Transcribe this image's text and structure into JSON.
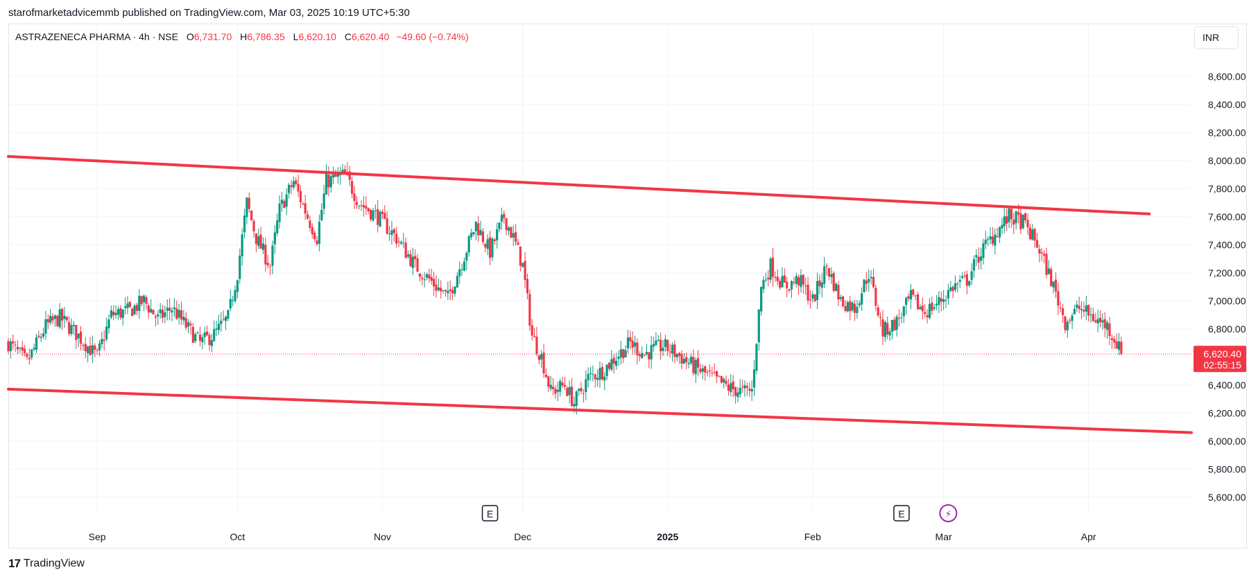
{
  "header": {
    "publisher_line": "starofmarketadvicemmb published on TradingView.com, Mar 03, 2025 10:19 UTC+5:30"
  },
  "legend": {
    "symbol": "ASTRAZENECA PHARMA · 4h · NSE",
    "open_label": "O",
    "open": "6,731.70",
    "high_label": "H",
    "high": "6,786.35",
    "low_label": "L",
    "low": "6,620.10",
    "close_label": "C",
    "close": "6,620.40",
    "change": "−49.60 (−0.74%)"
  },
  "currency_button": {
    "label": "INR"
  },
  "price_badge": {
    "price": "6,620.40",
    "countdown": "02:55:15"
  },
  "footer": {
    "brand": "TradingView",
    "logo_glyph": "17"
  },
  "colors": {
    "up": "#089981",
    "down": "#f23645",
    "channel": "#f23645",
    "grid": "#f0f3fa"
  },
  "chart_data": {
    "type": "candlestick",
    "ylim": [
      5500,
      8800
    ],
    "y_ticks": [
      5600,
      5800,
      6000,
      6200,
      6400,
      6600,
      6800,
      7000,
      7200,
      7400,
      7600,
      7800,
      8000,
      8200,
      8400,
      8600
    ],
    "y_tick_labels": [
      "5,600.00",
      "5,800.00",
      "6,000.00",
      "6,200.00",
      "6,400.00",
      "6,600.00",
      "6,800.00",
      "7,000.00",
      "7,200.00",
      "7,400.00",
      "7,600.00",
      "7,800.00",
      "8,000.00",
      "8,200.00",
      "8,400.00",
      "8,600.00"
    ],
    "x_range": [
      "2024-08-13",
      "2025-04-23"
    ],
    "x_ticks": [
      {
        "date": "2024-09-01",
        "label": "Sep",
        "bold": false
      },
      {
        "date": "2024-10-01",
        "label": "Oct",
        "bold": false
      },
      {
        "date": "2024-11-01",
        "label": "Nov",
        "bold": false
      },
      {
        "date": "2024-12-01",
        "label": "Dec",
        "bold": false
      },
      {
        "date": "2025-01-01",
        "label": "2025",
        "bold": true
      },
      {
        "date": "2025-02-01",
        "label": "Feb",
        "bold": false
      },
      {
        "date": "2025-03-01",
        "label": "Mar",
        "bold": false
      },
      {
        "date": "2025-04-01",
        "label": "Apr",
        "bold": false
      }
    ],
    "last_price": 6620.4,
    "price_path": [
      [
        "2024-08-13",
        6700
      ],
      [
        "2024-08-17",
        6560
      ],
      [
        "2024-08-21",
        6820
      ],
      [
        "2024-08-24",
        6880
      ],
      [
        "2024-08-28",
        6750
      ],
      [
        "2024-09-01",
        6600
      ],
      [
        "2024-09-04",
        6900
      ],
      [
        "2024-09-08",
        6930
      ],
      [
        "2024-09-11",
        7000
      ],
      [
        "2024-09-14",
        6870
      ],
      [
        "2024-09-17",
        6950
      ],
      [
        "2024-09-20",
        6820
      ],
      [
        "2024-09-23",
        6700
      ],
      [
        "2024-09-26",
        6760
      ],
      [
        "2024-09-29",
        6880
      ],
      [
        "2024-10-01",
        7200
      ],
      [
        "2024-10-03",
        7700
      ],
      [
        "2024-10-05",
        7450
      ],
      [
        "2024-10-08",
        7250
      ],
      [
        "2024-10-10",
        7650
      ],
      [
        "2024-10-13",
        7850
      ],
      [
        "2024-10-16",
        7600
      ],
      [
        "2024-10-18",
        7450
      ],
      [
        "2024-10-20",
        7850
      ],
      [
        "2024-10-24",
        7900
      ],
      [
        "2024-10-27",
        7700
      ],
      [
        "2024-10-31",
        7600
      ],
      [
        "2024-11-04",
        7450
      ],
      [
        "2024-11-08",
        7250
      ],
      [
        "2024-11-12",
        7120
      ],
      [
        "2024-11-15",
        7020
      ],
      [
        "2024-11-18",
        7280
      ],
      [
        "2024-11-21",
        7550
      ],
      [
        "2024-11-24",
        7350
      ],
      [
        "2024-11-27",
        7600
      ],
      [
        "2024-11-29",
        7450
      ],
      [
        "2024-12-01",
        7250
      ],
      [
        "2024-12-03",
        6750
      ],
      [
        "2024-12-05",
        6600
      ],
      [
        "2024-12-07",
        6350
      ],
      [
        "2024-12-10",
        6400
      ],
      [
        "2024-12-12",
        6270
      ],
      [
        "2024-12-15",
        6450
      ],
      [
        "2024-12-18",
        6500
      ],
      [
        "2024-12-21",
        6600
      ],
      [
        "2024-12-24",
        6700
      ],
      [
        "2024-12-27",
        6620
      ],
      [
        "2024-12-31",
        6680
      ],
      [
        "2025-01-03",
        6620
      ],
      [
        "2025-01-07",
        6520
      ],
      [
        "2025-01-10",
        6460
      ],
      [
        "2025-01-14",
        6380
      ],
      [
        "2025-01-17",
        6350
      ],
      [
        "2025-01-19",
        6360
      ],
      [
        "2025-01-21",
        7100
      ],
      [
        "2025-01-23",
        7250
      ],
      [
        "2025-01-26",
        7100
      ],
      [
        "2025-01-29",
        7150
      ],
      [
        "2025-02-01",
        7000
      ],
      [
        "2025-02-04",
        7250
      ],
      [
        "2025-02-07",
        7000
      ],
      [
        "2025-02-10",
        6950
      ],
      [
        "2025-02-13",
        7200
      ],
      [
        "2025-02-16",
        6780
      ],
      [
        "2025-02-19",
        6850
      ],
      [
        "2025-02-22",
        7020
      ],
      [
        "2025-02-25",
        6920
      ],
      [
        "2025-02-28",
        6990
      ],
      [
        "2025-03-03",
        7100
      ],
      [
        "2025-03-06",
        7150
      ],
      [
        "2025-03-09",
        7350
      ],
      [
        "2025-03-12",
        7480
      ],
      [
        "2025-03-15",
        7600
      ],
      [
        "2025-03-18",
        7560
      ],
      [
        "2025-03-21",
        7400
      ],
      [
        "2025-03-24",
        7150
      ],
      [
        "2025-03-27",
        6850
      ],
      [
        "2025-03-30",
        6950
      ],
      [
        "2025-04-02",
        6880
      ],
      [
        "2025-04-05",
        6820
      ],
      [
        "2025-04-07",
        6700
      ],
      [
        "2025-04-08",
        6620
      ]
    ],
    "channel_lines": [
      {
        "name": "upper",
        "from": [
          "2024-08-13",
          8030
        ],
        "to": [
          "2025-04-14",
          7620
        ]
      },
      {
        "name": "lower",
        "from": [
          "2024-08-13",
          6370
        ],
        "to": [
          "2025-04-23",
          6060
        ]
      }
    ],
    "event_markers": [
      {
        "date": "2024-11-24",
        "label": "E",
        "kind": "earnings"
      },
      {
        "date": "2025-02-20",
        "label": "E",
        "kind": "earnings"
      },
      {
        "date": "2025-03-02",
        "label": "⚡",
        "kind": "split"
      }
    ]
  }
}
